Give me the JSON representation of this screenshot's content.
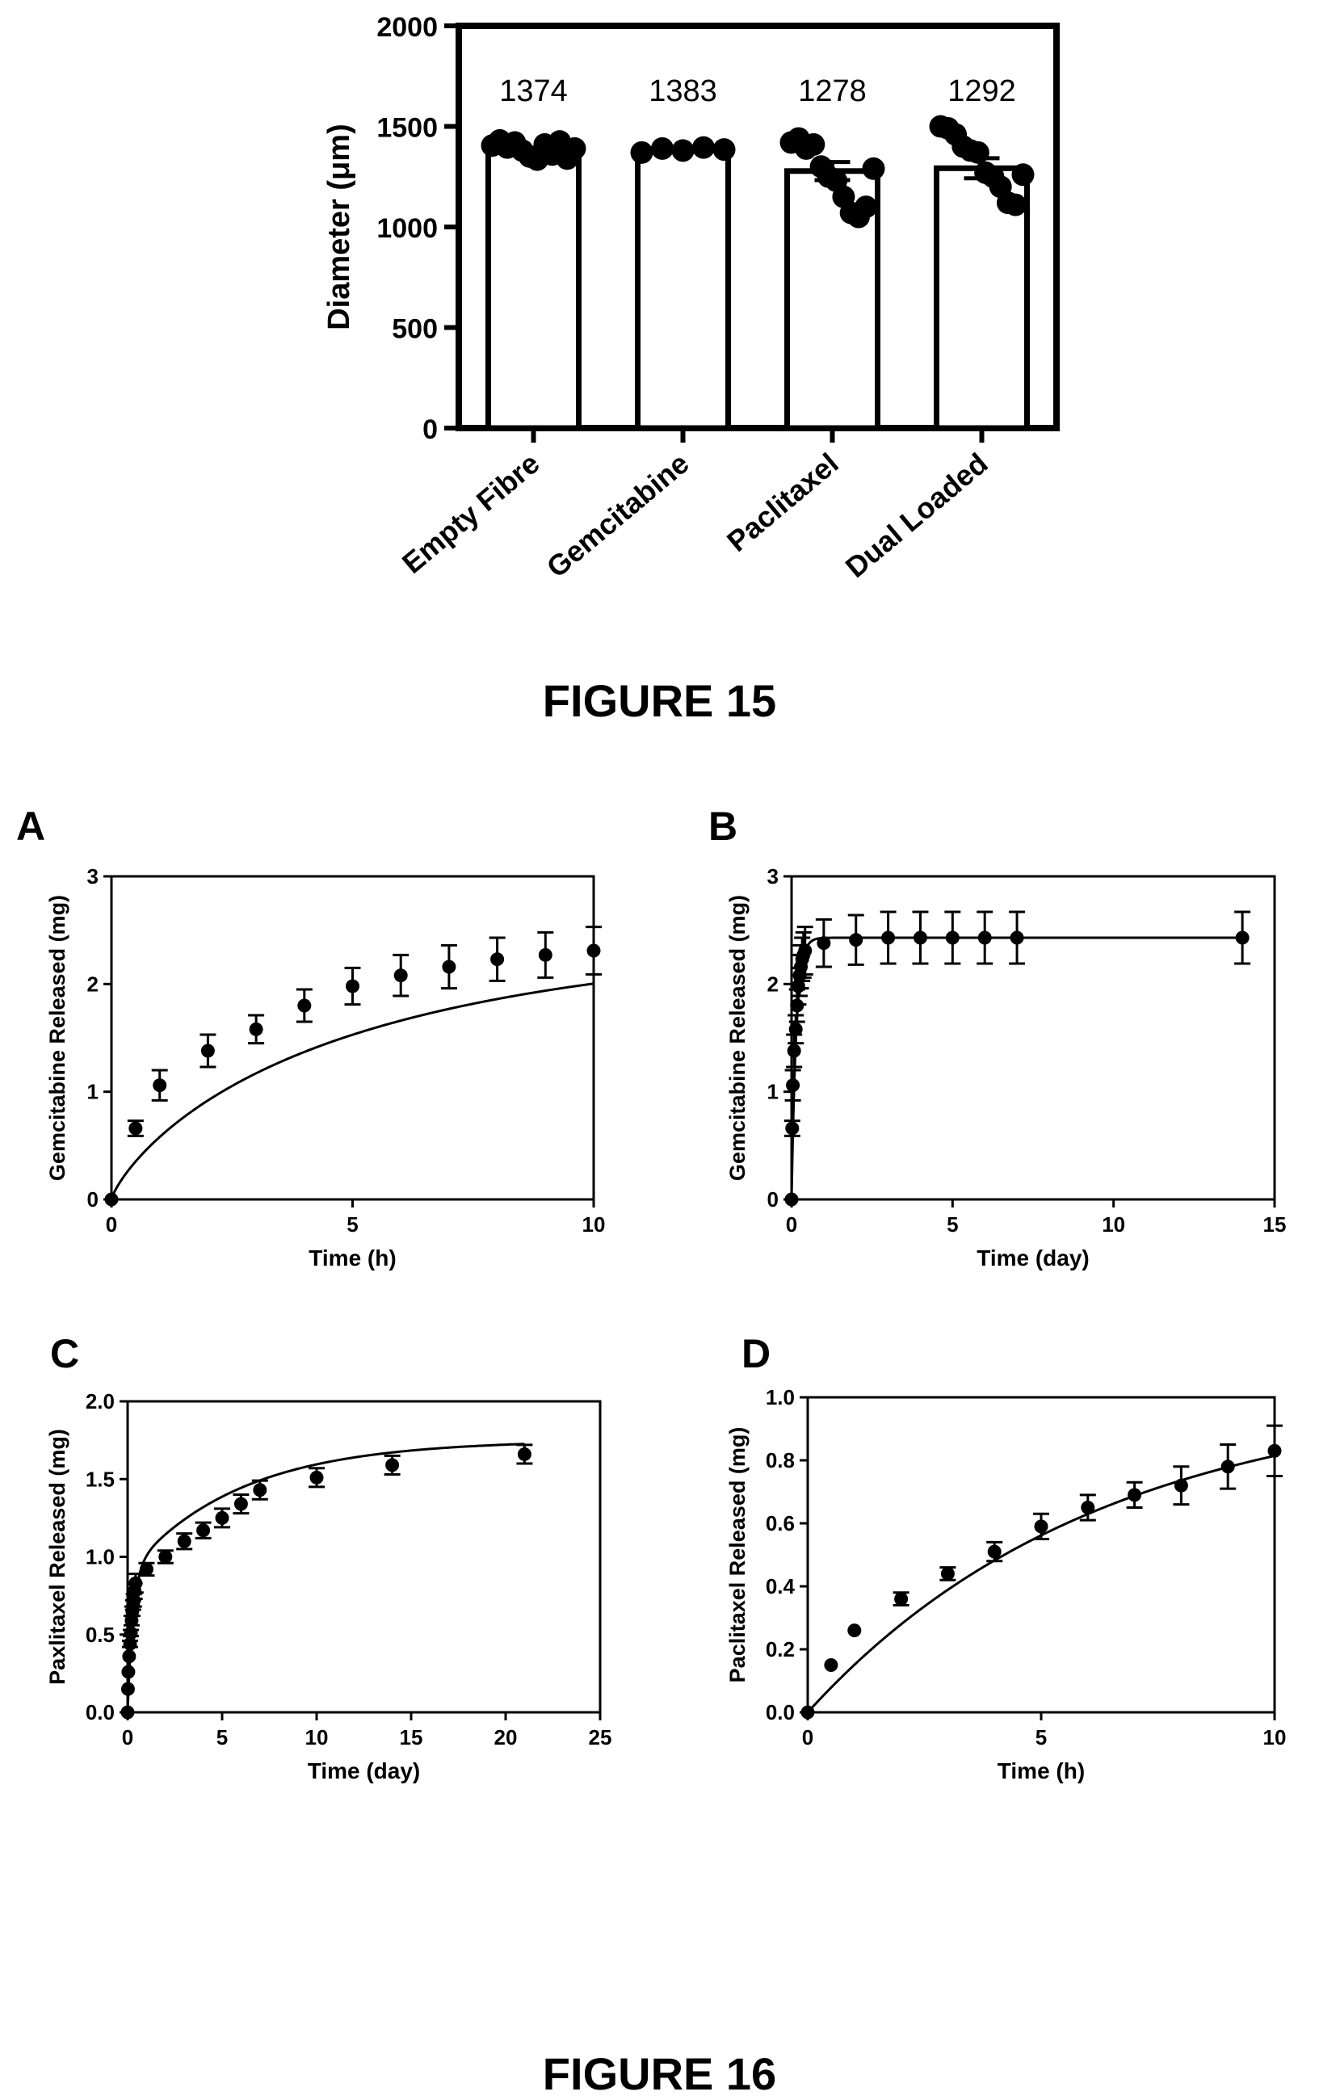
{
  "figure15": {
    "caption": "FIGURE 15",
    "chart_data": {
      "type": "bar",
      "ylabel": "Diameter (μm)",
      "xlabel": "",
      "ylim": [
        0,
        2000
      ],
      "yticks": [
        0,
        500,
        1000,
        1500,
        2000
      ],
      "categories": [
        "Empty Fibre",
        "Gemcitabine",
        "Paclitaxel",
        "Dual Loaded"
      ],
      "values": [
        1374,
        1383,
        1278,
        1292
      ],
      "value_labels": [
        "1374",
        "1383",
        "1278",
        "1292"
      ],
      "sem": [
        20,
        10,
        45,
        50
      ],
      "points": [
        [
          1405,
          1430,
          1395,
          1420,
          1380,
          1350,
          1335,
          1410,
          1360,
          1425,
          1340,
          1390
        ],
        [
          1370,
          1390,
          1380,
          1395,
          1385
        ],
        [
          1420,
          1440,
          1390,
          1410,
          1300,
          1250,
          1230,
          1150,
          1070,
          1050,
          1100,
          1290
        ],
        [
          1500,
          1490,
          1460,
          1400,
          1380,
          1370,
          1270,
          1250,
          1200,
          1120,
          1110,
          1260
        ]
      ],
      "grid": false
    }
  },
  "figure16": {
    "caption": "FIGURE 16",
    "chart_data": [
      {
        "panel": "A",
        "type": "scatter",
        "xlabel": "Time (h)",
        "ylabel": "Gemcitabine Released (mg)",
        "xlim": [
          0,
          10
        ],
        "ylim": [
          0,
          3
        ],
        "xticks": [
          0,
          5,
          10
        ],
        "yticks": [
          0,
          1,
          2,
          3
        ],
        "x": [
          0,
          0.5,
          1,
          2,
          3,
          4,
          5,
          6,
          7,
          8,
          9,
          10
        ],
        "y": [
          0,
          0.66,
          1.06,
          1.38,
          1.58,
          1.8,
          1.98,
          2.08,
          2.16,
          2.23,
          2.27,
          2.31
        ],
        "err": [
          0,
          0.07,
          0.14,
          0.15,
          0.13,
          0.15,
          0.17,
          0.19,
          0.2,
          0.2,
          0.21,
          0.22
        ],
        "fit": {
          "a": 2.45,
          "b": 0.27,
          "c": 0.8
        },
        "grid": false
      },
      {
        "panel": "B",
        "type": "scatter",
        "xlabel": "Time (day)",
        "ylabel": "Gemcitabine Released (mg)",
        "xlim": [
          0,
          15
        ],
        "ylim": [
          0,
          3
        ],
        "xticks": [
          0,
          5,
          10,
          15
        ],
        "yticks": [
          0,
          1,
          2,
          3
        ],
        "x": [
          0,
          0.02,
          0.04,
          0.08,
          0.13,
          0.17,
          0.21,
          0.25,
          0.29,
          0.33,
          0.37,
          0.42,
          1,
          2,
          3,
          4,
          5,
          6,
          7,
          14
        ],
        "y": [
          0,
          0.66,
          1.06,
          1.38,
          1.58,
          1.8,
          1.98,
          2.08,
          2.16,
          2.23,
          2.27,
          2.31,
          2.38,
          2.41,
          2.43,
          2.43,
          2.43,
          2.43,
          2.43,
          2.43
        ],
        "err": [
          0,
          0.07,
          0.14,
          0.15,
          0.13,
          0.15,
          0.17,
          0.19,
          0.2,
          0.2,
          0.21,
          0.22,
          0.22,
          0.23,
          0.24,
          0.24,
          0.24,
          0.24,
          0.24,
          0.24
        ],
        "fit": {
          "a": 2.43,
          "k": 7.0
        },
        "grid": false
      },
      {
        "panel": "C",
        "type": "scatter",
        "xlabel": "Time (day)",
        "ylabel": "Paxlitaxel Released (mg)",
        "xlim": [
          0,
          25
        ],
        "ylim": [
          0,
          2.0
        ],
        "xticks": [
          0,
          5,
          10,
          15,
          20,
          25
        ],
        "ytick_labels": [
          "0.0",
          "0.5",
          "1.0",
          "1.5",
          "2.0"
        ],
        "yticks": [
          0,
          0.5,
          1.0,
          1.5,
          2.0
        ],
        "x": [
          0,
          0.02,
          0.04,
          0.08,
          0.13,
          0.17,
          0.21,
          0.25,
          0.29,
          0.33,
          0.37,
          0.42,
          1,
          2,
          3,
          4,
          5,
          6,
          7,
          10,
          14,
          21
        ],
        "y": [
          0,
          0.15,
          0.26,
          0.36,
          0.44,
          0.51,
          0.59,
          0.65,
          0.69,
          0.72,
          0.78,
          0.83,
          0.92,
          1.0,
          1.1,
          1.17,
          1.25,
          1.34,
          1.43,
          1.51,
          1.59,
          1.66
        ],
        "err": [
          0,
          0,
          0,
          0,
          0.02,
          0.02,
          0.03,
          0.03,
          0.03,
          0.04,
          0.05,
          0.06,
          0.04,
          0.04,
          0.05,
          0.05,
          0.06,
          0.06,
          0.06,
          0.06,
          0.06,
          0.06
        ],
        "fit": {
          "a1": 0.9,
          "k1": 3.5,
          "a2": 0.85,
          "k2": 0.17
        },
        "grid": false
      },
      {
        "panel": "D",
        "type": "scatter",
        "xlabel": "Time (h)",
        "ylabel": "Paclitaxel Released (mg)",
        "xlim": [
          0,
          10
        ],
        "ylim": [
          0,
          1.0
        ],
        "xticks": [
          0,
          5,
          10
        ],
        "ytick_labels": [
          "0.0",
          "0.2",
          "0.4",
          "0.6",
          "0.8",
          "1.0"
        ],
        "yticks": [
          0,
          0.2,
          0.4,
          0.6,
          0.8,
          1.0
        ],
        "x": [
          0,
          0.5,
          1,
          2,
          3,
          4,
          5,
          6,
          7,
          8,
          9,
          10
        ],
        "y": [
          0,
          0.15,
          0.26,
          0.36,
          0.44,
          0.51,
          0.59,
          0.65,
          0.69,
          0.72,
          0.78,
          0.83
        ],
        "err": [
          0,
          0,
          0,
          0.02,
          0.02,
          0.03,
          0.04,
          0.04,
          0.04,
          0.06,
          0.07,
          0.08
        ],
        "fit": {
          "a": 1.02,
          "k": 0.16
        },
        "grid": false
      }
    ]
  }
}
